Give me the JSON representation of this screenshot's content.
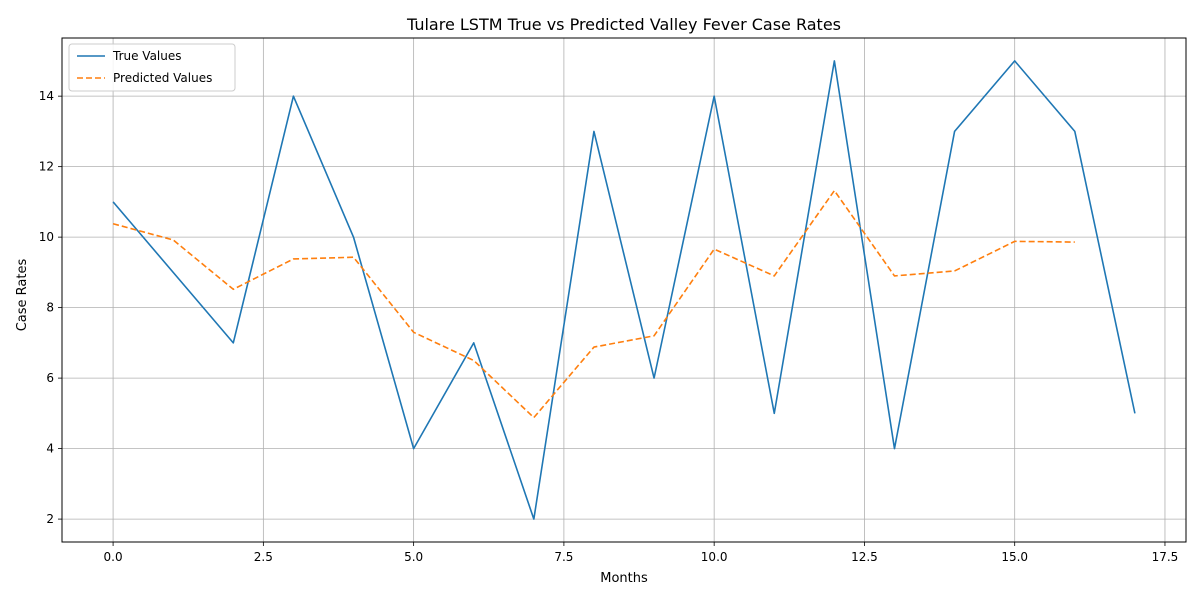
{
  "chart_data": {
    "type": "line",
    "title": "Tulare LSTM True vs Predicted Valley Fever Case Rates",
    "xlabel": "Months",
    "ylabel": "Case Rates",
    "xlim": [
      -0.85,
      17.85
    ],
    "ylim": [
      1.35,
      15.65
    ],
    "xticks": [
      0.0,
      2.5,
      5.0,
      7.5,
      10.0,
      12.5,
      15.0,
      17.5
    ],
    "xtick_labels": [
      "0.0",
      "2.5",
      "5.0",
      "7.5",
      "10.0",
      "12.5",
      "15.0",
      "17.5"
    ],
    "yticks": [
      2,
      4,
      6,
      8,
      10,
      12,
      14
    ],
    "ytick_labels": [
      "2",
      "4",
      "6",
      "8",
      "10",
      "12",
      "14"
    ],
    "grid": true,
    "legend_position": "top-left",
    "series": [
      {
        "name": "True Values",
        "color": "#1f77b4",
        "style": "solid",
        "x": [
          0,
          1,
          2,
          3,
          4,
          5,
          6,
          7,
          8,
          9,
          10,
          11,
          12,
          13,
          14,
          15,
          16,
          17
        ],
        "values": [
          11,
          9,
          7,
          14,
          10,
          4,
          7,
          2,
          13,
          6,
          14,
          5,
          15,
          4,
          13,
          15,
          13,
          5
        ]
      },
      {
        "name": "Predicted Values",
        "color": "#ff7f0e",
        "style": "dashed",
        "x": [
          0,
          1,
          2,
          3,
          4,
          5,
          6,
          7,
          8,
          9,
          10,
          11,
          12,
          13,
          14,
          15,
          16
        ],
        "values": [
          10.38,
          9.92,
          8.52,
          9.38,
          9.43,
          7.3,
          6.5,
          4.88,
          6.88,
          7.2,
          9.66,
          8.9,
          11.32,
          8.9,
          9.04,
          9.88,
          9.86
        ]
      }
    ]
  }
}
